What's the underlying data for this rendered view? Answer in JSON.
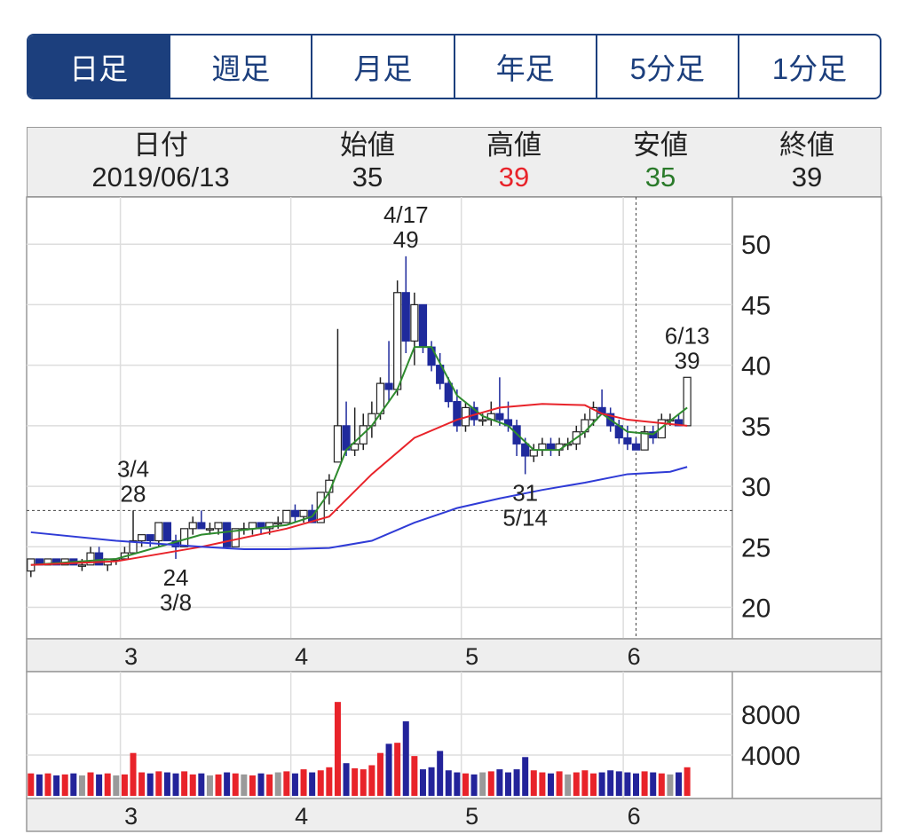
{
  "tabs": [
    "日足",
    "週足",
    "月足",
    "年足",
    "5分足",
    "1分足"
  ],
  "header": {
    "columns": [
      {
        "label": "日付",
        "value": "2019/06/13"
      },
      {
        "label": "始値",
        "value": 35
      },
      {
        "label": "高値",
        "value": 39,
        "color": "#e8232a"
      },
      {
        "label": "安値",
        "value": 35,
        "color": "#2a7a2a"
      },
      {
        "label": "終値",
        "value": 39
      }
    ]
  },
  "chart_data": [
    {
      "type": "candlestick",
      "open": [
        23,
        24,
        23.5,
        24,
        23.5,
        24,
        23.5,
        23.5,
        24.5,
        23.5,
        24,
        24,
        24.5,
        25.5,
        26,
        25.5,
        27,
        25.5,
        25,
        26.5,
        27,
        26.5,
        26.5,
        27,
        25,
        26.5,
        26.5,
        27,
        26.5,
        27,
        27,
        28,
        27.5,
        28,
        27,
        29.5,
        32,
        35,
        33,
        33.5,
        35,
        36,
        38.5,
        38,
        46,
        42,
        45,
        41.5,
        40,
        38.5,
        37,
        35,
        36.5,
        35.5,
        35.5,
        36,
        35.5,
        35,
        33.5,
        32.5,
        33,
        33.5,
        33,
        33.5,
        33.5,
        34.5,
        35.5,
        36.5,
        36,
        35,
        34,
        33.5,
        33,
        34.5,
        34,
        35.5,
        35.5,
        35
      ],
      "high": [
        24,
        24,
        24,
        24,
        24,
        24,
        24,
        25,
        25,
        24,
        24,
        25,
        28,
        26,
        26,
        27,
        27,
        26,
        26.5,
        27.5,
        28,
        27,
        27,
        27,
        26.5,
        27,
        27,
        27,
        27,
        27.5,
        28,
        28.5,
        28,
        28.5,
        29.5,
        31,
        43,
        37,
        36.5,
        36,
        37,
        39,
        42,
        47,
        49,
        46,
        45,
        42,
        41,
        39,
        38,
        37,
        37,
        36,
        37,
        39,
        37,
        35.5,
        34,
        33.5,
        34,
        34,
        34,
        34,
        35,
        36,
        37,
        38,
        36.5,
        35.5,
        35,
        34,
        35,
        35,
        36,
        36,
        36,
        39
      ],
      "low": [
        22.5,
        23.5,
        23.5,
        23.5,
        23.5,
        23.5,
        23,
        23.5,
        23.5,
        23,
        23.5,
        24,
        24.5,
        25,
        25,
        25,
        25.5,
        24,
        25,
        26,
        26.5,
        26,
        26,
        25,
        25,
        26,
        26,
        26,
        26,
        26.5,
        27,
        27,
        27,
        27,
        27,
        28.5,
        32,
        32.5,
        32.5,
        33,
        34,
        35.5,
        37,
        37.5,
        41,
        40,
        41,
        39.5,
        38,
        36.5,
        34.5,
        34.5,
        35,
        35,
        35,
        35,
        34.5,
        32.5,
        31,
        32,
        32.5,
        32.5,
        32.5,
        33,
        33,
        34,
        35,
        36,
        34.5,
        33.5,
        33,
        33,
        33,
        33.5,
        34,
        35,
        35,
        35
      ],
      "close": [
        24,
        23.5,
        24,
        23.5,
        24,
        23.5,
        23.5,
        24.5,
        23.5,
        24,
        24,
        24.5,
        25.5,
        26,
        25.5,
        27,
        25.5,
        25,
        26.5,
        27,
        26.5,
        26.5,
        27,
        25,
        26.5,
        26.5,
        27,
        26.5,
        27,
        27,
        28,
        27.5,
        28,
        27,
        29.5,
        30.5,
        35,
        33,
        33.5,
        35,
        36,
        38.5,
        38,
        46,
        42,
        45,
        41.5,
        40,
        38.5,
        37,
        35,
        36.5,
        35.5,
        35.5,
        36,
        35.5,
        35,
        33.5,
        32.5,
        33,
        33.5,
        33,
        33.5,
        33.5,
        34.5,
        35.5,
        36.5,
        36,
        35,
        34,
        33.5,
        33,
        34.5,
        34,
        35.5,
        35.5,
        35,
        39
      ],
      "up_color": "#ffffff",
      "down_color": "#1f2a9c",
      "lines": [
        {
          "color": "#2e8b2e",
          "x": [
            0,
            10,
            20,
            30,
            33,
            35,
            37,
            40,
            43,
            45,
            47,
            50,
            53,
            56,
            59,
            62,
            65,
            67,
            70,
            73,
            77
          ],
          "values": [
            23.5,
            24,
            26,
            26.8,
            27.5,
            29.5,
            33,
            35,
            38,
            41.5,
            41.5,
            37.5,
            35.8,
            35,
            33,
            33,
            34.5,
            36,
            34.5,
            34.3,
            36.5
          ]
        },
        {
          "color": "#e8232a",
          "x": [
            0,
            10,
            20,
            30,
            35,
            40,
            45,
            50,
            55,
            60,
            65,
            67,
            70,
            77
          ],
          "values": [
            23.5,
            23.8,
            25,
            26.5,
            27.5,
            31,
            34,
            35.5,
            36.5,
            36.8,
            36.7,
            36,
            35.5,
            35
          ]
        },
        {
          "color": "#2f3bd6",
          "x": [
            0,
            10,
            20,
            25,
            30,
            35,
            40,
            45,
            50,
            55,
            60,
            65,
            70,
            75,
            77
          ],
          "values": [
            26.2,
            25.5,
            25,
            24.8,
            24.8,
            24.9,
            25.5,
            27,
            28.2,
            29,
            29.7,
            30.3,
            31,
            31.2,
            31.6
          ]
        }
      ],
      "high_marks": [
        {
          "x": 12,
          "label": "3/4",
          "value": 28
        },
        {
          "x": 44,
          "label": "4/17",
          "value": 49
        },
        {
          "x": 77,
          "label": "6/13",
          "value": 39
        }
      ],
      "low_marks": [
        {
          "x": 17,
          "label": "3/8",
          "value": 24
        },
        {
          "x": 58,
          "label": "5/14",
          "value": 31
        }
      ],
      "crosshair": {
        "x": 71,
        "y": 28
      },
      "xlim": [
        -0.5,
        82.3
      ],
      "ylim": [
        17.4,
        53.9
      ],
      "yticks": [
        20,
        25,
        30,
        35,
        40,
        45,
        50
      ],
      "xticks": [
        {
          "value": 10.5,
          "label": "3"
        },
        {
          "value": 30.5,
          "label": "4"
        },
        {
          "value": 50.5,
          "label": "5"
        },
        {
          "value": 69.5,
          "label": "6"
        }
      ],
      "grid": true
    },
    {
      "type": "volume",
      "values": [
        2200,
        2100,
        2200,
        2000,
        2100,
        2200,
        2000,
        2300,
        2100,
        2200,
        2000,
        2100,
        4200,
        2300,
        2200,
        2400,
        2300,
        2200,
        2400,
        2100,
        2200,
        2000,
        2100,
        2300,
        2200,
        2100,
        2000,
        2200,
        2100,
        2300,
        2400,
        2200,
        2600,
        2300,
        2500,
        2800,
        9200,
        3200,
        2700,
        2600,
        3000,
        4200,
        5100,
        5200,
        7300,
        3900,
        2600,
        2800,
        4400,
        2500,
        2300,
        2200,
        2100,
        2300,
        2400,
        2600,
        2300,
        2600,
        3800,
        2500,
        2300,
        2200,
        2400,
        2100,
        2300,
        2500,
        2200,
        2300,
        2500,
        2400,
        2300,
        2200,
        2400,
        2300,
        2200,
        2100,
        2300,
        2800
      ],
      "colors": {
        "up": "#e8232a",
        "down": "#23239a",
        "flat": "#9a9a9a"
      },
      "ylim": [
        0,
        12170
      ],
      "yticks": [
        4000,
        8000
      ],
      "xlim": [
        -0.5,
        82.3
      ],
      "xticks": [
        {
          "value": 10.5,
          "label": "3"
        },
        {
          "value": 30.5,
          "label": "4"
        },
        {
          "value": 50.5,
          "label": "5"
        },
        {
          "value": 69.5,
          "label": "6"
        }
      ],
      "grid": true
    }
  ]
}
